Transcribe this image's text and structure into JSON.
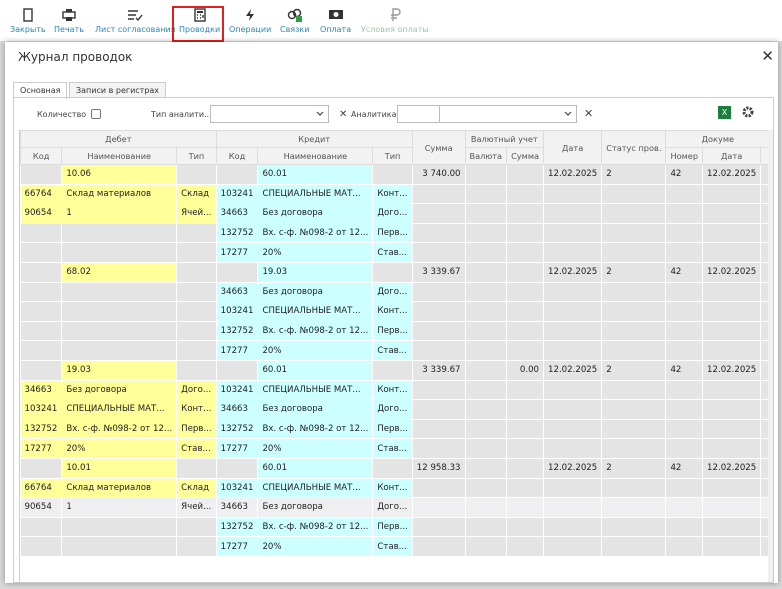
{
  "toolbar": {
    "buttons": [
      "Закрыть",
      "Печать",
      "Лист согласования",
      "Проводки",
      "Операции",
      "Связки",
      "Оплата",
      "Условия оплаты"
    ]
  },
  "dialog": {
    "title": "Журнал проводок",
    "tabs": [
      "Основная",
      "Записи в регистрах"
    ],
    "filters": {
      "quantity_label": "Количество",
      "analytics_type_label": "Тип аналити...",
      "analytics_label": "Аналитика"
    }
  },
  "table": {
    "group_headers": [
      "Дебет",
      "Кредит",
      "Сумма",
      "Валютный учет",
      "Дата",
      "Статус пров.",
      "Докуме"
    ],
    "column_headers": [
      "Код",
      "Наименование",
      "Тип",
      "Код",
      "Наименование",
      "Тип",
      "Валюта",
      "Сумма",
      "Номер",
      "Дата"
    ],
    "rows": [
      [
        null,
        "10.06",
        null,
        null,
        "60.01",
        null,
        "3 740.00",
        null,
        null,
        "12.02.2025",
        "2",
        "42",
        "12.02.2025"
      ],
      [
        "66764",
        "Склад материалов",
        "Склад",
        "103241",
        "СПЕЦИАЛЬНЫЕ МАТ...",
        "Конт...",
        null,
        null,
        null,
        null,
        null,
        null,
        null
      ],
      [
        "90654",
        "1",
        "Ячей...",
        "34663",
        "Без договора",
        "Дого...",
        null,
        null,
        null,
        null,
        null,
        null,
        null
      ],
      [
        null,
        null,
        null,
        "132752",
        "Вх. с-ф. №098-2 от 12...",
        "Перв...",
        null,
        null,
        null,
        null,
        null,
        null,
        null
      ],
      [
        null,
        null,
        null,
        "17277",
        "20%",
        "Став...",
        null,
        null,
        null,
        null,
        null,
        null,
        null
      ],
      [
        null,
        "68.02",
        null,
        null,
        "19.03",
        null,
        "3 339.67",
        null,
        null,
        "12.02.2025",
        "2",
        "42",
        "12.02.2025"
      ],
      [
        null,
        null,
        null,
        "34663",
        "Без договора",
        "Дого...",
        null,
        null,
        null,
        null,
        null,
        null,
        null
      ],
      [
        null,
        null,
        null,
        "103241",
        "СПЕЦИАЛЬНЫЕ МАТ...",
        "Конт...",
        null,
        null,
        null,
        null,
        null,
        null,
        null
      ],
      [
        null,
        null,
        null,
        "132752",
        "Вх. с-ф. №098-2 от 12...",
        "Перв...",
        null,
        null,
        null,
        null,
        null,
        null,
        null
      ],
      [
        null,
        null,
        null,
        "17277",
        "20%",
        "Став...",
        null,
        null,
        null,
        null,
        null,
        null,
        null
      ],
      [
        null,
        "19.03",
        null,
        null,
        "60.01",
        null,
        "3 339.67",
        null,
        "0.00",
        "12.02.2025",
        "2",
        "42",
        "12.02.2025"
      ],
      [
        "34663",
        "Без договора",
        "Дого...",
        "103241",
        "СПЕЦИАЛЬНЫЕ МАТ...",
        "Конт...",
        null,
        null,
        null,
        null,
        null,
        null,
        null
      ],
      [
        "103241",
        "СПЕЦИАЛЬНЫЕ МАТ...",
        "Конт...",
        "34663",
        "Без договора",
        "Дого...",
        null,
        null,
        null,
        null,
        null,
        null,
        null
      ],
      [
        "132752",
        "Вх. с-ф. №098-2 от 12...",
        "Перв...",
        "132752",
        "Вх. с-ф. №098-2 от 12...",
        "Перв...",
        null,
        null,
        null,
        null,
        null,
        null,
        null
      ],
      [
        "17277",
        "20%",
        "Став...",
        "17277",
        "20%",
        "Став...",
        null,
        null,
        null,
        null,
        null,
        null,
        null
      ],
      [
        null,
        "10.01",
        null,
        null,
        "60.01",
        null,
        "12 958.33",
        null,
        null,
        "12.02.2025",
        "2",
        "42",
        "12.02.2025"
      ],
      [
        "66764",
        "Склад материалов",
        "Склад",
        "103241",
        "СПЕЦИАЛЬНЫЕ МАТ...",
        "Конт...",
        null,
        null,
        null,
        null,
        null,
        null,
        null
      ],
      [
        "90654",
        "1",
        "Ячей...",
        "34663",
        "Без договора",
        "Дого...",
        null,
        null,
        null,
        null,
        null,
        null,
        null
      ],
      [
        null,
        null,
        null,
        "132752",
        "Вх. с-ф. №098-2 от 12...",
        "Перв...",
        null,
        null,
        null,
        null,
        null,
        null,
        null
      ],
      [
        null,
        null,
        null,
        "17277",
        "20%",
        "Став...",
        null,
        null,
        null,
        null,
        null,
        null,
        null
      ]
    ]
  }
}
